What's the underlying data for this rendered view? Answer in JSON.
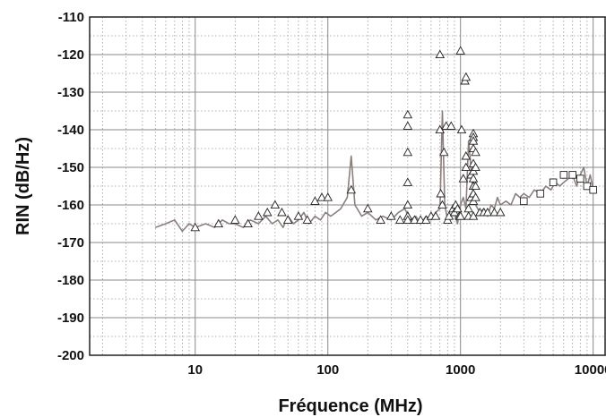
{
  "chart_data": {
    "type": "scatter",
    "title": "",
    "xlabel": "Fréquence (MHz)",
    "ylabel": "RIN (dB/Hz)",
    "x_scale": "log",
    "xlim": [
      1.6,
      12500
    ],
    "ylim": [
      -200,
      -110
    ],
    "x_ticks": [
      10,
      100,
      1000,
      10000
    ],
    "x_tick_labels": [
      "10",
      "100",
      "1000",
      "10000"
    ],
    "y_ticks": [
      -200,
      -190,
      -180,
      -170,
      -160,
      -150,
      -140,
      -130,
      -120,
      -110
    ],
    "y_tick_labels": [
      "-200",
      "-190",
      "-180",
      "-170",
      "-160",
      "-150",
      "-140",
      "-130",
      "-120",
      "-110"
    ],
    "grid": true,
    "colors": {
      "trace": "#8c7f7d",
      "grid_major": "#8a8a8a",
      "grid_minor": "#9a9a9a",
      "frame": "#222222",
      "marker_fill": "#ffffff",
      "marker_edge": "#222222"
    },
    "series": [
      {
        "style": "line",
        "x": [
          5,
          6,
          7,
          8,
          9,
          10,
          12,
          14,
          16,
          18,
          20,
          23,
          26,
          30,
          34,
          38,
          42,
          46,
          50,
          55,
          60,
          66,
          72,
          80,
          88,
          96,
          105,
          115,
          125,
          140,
          150,
          160,
          180,
          200,
          230,
          260,
          300,
          340,
          380,
          420,
          460,
          500,
          550,
          600,
          650,
          700,
          730,
          760,
          800,
          850,
          900,
          950,
          1000,
          1050,
          1100,
          1150,
          1200,
          1250,
          1300,
          1400,
          1500,
          1600,
          1700,
          1800,
          1900,
          2000,
          2200,
          2400,
          2600,
          2800,
          3000,
          3300,
          3600,
          4000,
          4400,
          4800,
          5200,
          5600,
          6000,
          6500,
          7000,
          7500,
          8000,
          8500,
          9000,
          9500,
          10000
        ],
        "y": [
          -166,
          -165,
          -164,
          -167,
          -165,
          -166,
          -165,
          -166,
          -164,
          -165,
          -165,
          -166,
          -164,
          -165,
          -163,
          -165,
          -164,
          -166,
          -163,
          -165,
          -164,
          -162,
          -165,
          -163,
          -164,
          -162,
          -163,
          -162,
          -161,
          -158,
          -147,
          -160,
          -163,
          -162,
          -164,
          -163,
          -164,
          -162,
          -161,
          -164,
          -163,
          -165,
          -163,
          -164,
          -162,
          -161,
          -135,
          -160,
          -164,
          -163,
          -162,
          -165,
          -160,
          -158,
          -161,
          -143,
          -150,
          -158,
          -160,
          -162,
          -161,
          -163,
          -160,
          -161,
          -158,
          -160,
          -159,
          -160,
          -157,
          -158,
          -157,
          -158,
          -156,
          -157,
          -155,
          -156,
          -154,
          -155,
          -154,
          -153,
          -152,
          -155,
          -152,
          -150,
          -155,
          -152,
          -156
        ]
      },
      {
        "style": "triangle-markers",
        "x": [
          10,
          15,
          20,
          25,
          30,
          35,
          40,
          45,
          50,
          60,
          70,
          80,
          90,
          100,
          150,
          200,
          250,
          300,
          350,
          400,
          400,
          400,
          400,
          400,
          400,
          400,
          400,
          450,
          500,
          550,
          600,
          650,
          700,
          700,
          710,
          730,
          750,
          780,
          800,
          820,
          850,
          880,
          900,
          920,
          950,
          980,
          1000,
          1000,
          1020,
          1050,
          1080,
          1100,
          1100,
          1100,
          1150,
          1150,
          1200,
          1200,
          1250,
          1250,
          1250,
          1250,
          1250,
          1250,
          1250,
          1250,
          1250,
          1250,
          1250,
          1300,
          1300,
          1300,
          1300,
          1400,
          1500,
          1600,
          1800,
          2000
        ],
        "y": [
          -166,
          -165,
          -164,
          -165,
          -163,
          -162,
          -160,
          -162,
          -164,
          -163,
          -164,
          -159,
          -158,
          -158,
          -156,
          -161,
          -164,
          -163,
          -164,
          -136,
          -139,
          -146,
          -154,
          -160,
          -163,
          -163,
          -164,
          -164,
          -164,
          -164,
          -163,
          -163,
          -120,
          -140,
          -157,
          -160,
          -146,
          -139,
          -164,
          -163,
          -139,
          -161,
          -162,
          -160,
          -161,
          -163,
          -163,
          -119,
          -140,
          -153,
          -127,
          -126,
          -147,
          -150,
          -163,
          -161,
          -158,
          -152,
          -141,
          -142,
          -145,
          -149,
          -151,
          -153,
          -155,
          -157,
          -159,
          -163,
          -143,
          -146,
          -150,
          -155,
          -158,
          -162,
          -162,
          -162,
          -162,
          -162
        ]
      },
      {
        "style": "square-markers",
        "x": [
          3000,
          4000,
          5000,
          6000,
          7000,
          8000,
          9000,
          10000
        ],
        "y": [
          -159,
          -157,
          -154,
          -152,
          -152,
          -153,
          -155,
          -156
        ]
      }
    ]
  }
}
